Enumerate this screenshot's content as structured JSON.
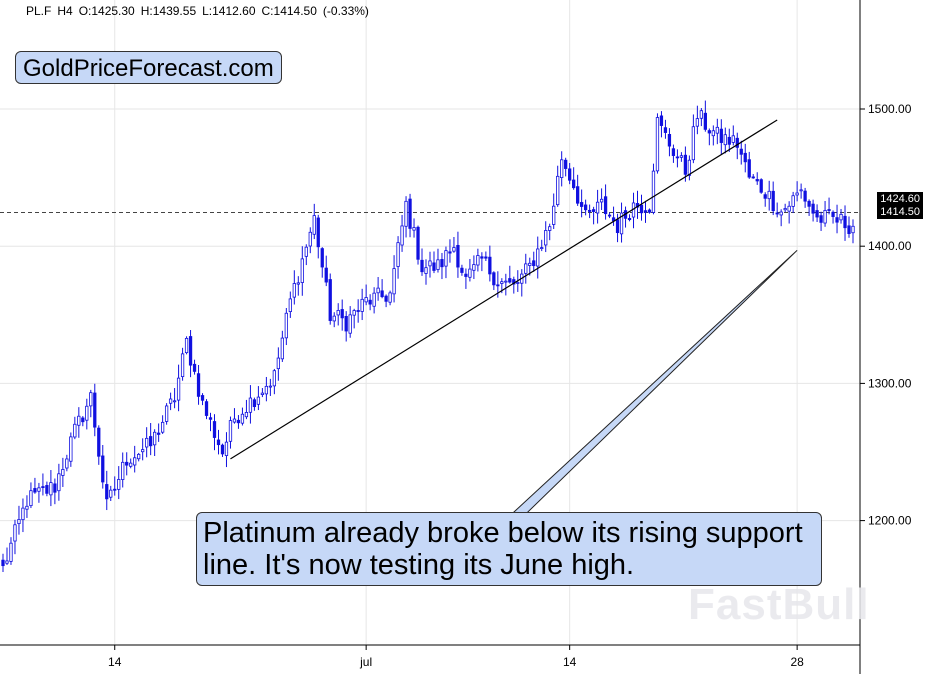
{
  "header": {
    "symbol": "PL.F",
    "timeframe": "H4",
    "open": "O:1425.30",
    "high": "H:1439.55",
    "low": "L:1412.60",
    "close": "C:1414.50",
    "change": "(-0.33%)"
  },
  "brand_label": "GoldPriceForecast.com",
  "annotation": "Platinum already broke below its rising support line. It's now testing its June high.",
  "watermark": "FastBull",
  "price_tags": {
    "reference": "1424.60",
    "last": "1414.50"
  },
  "colors": {
    "candle": "#1010e0",
    "annotation_fill": "#c6d8f7",
    "grid": "#e6e6e6"
  },
  "chart_data": {
    "type": "candlestick",
    "ylim": [
      1115,
      1575
    ],
    "y_ticks": [
      "1200.00",
      "1300.00",
      "1400.00",
      "1500.00"
    ],
    "y_tick_values": [
      1200,
      1300,
      1400,
      1500
    ],
    "x_ticks": [
      "14",
      "jul",
      "14",
      "28"
    ],
    "x_tick_bars": [
      28,
      91,
      142,
      199
    ],
    "bar_count": 214,
    "reference_level": 1424.6,
    "last_price": 1414.5,
    "anchors": [
      [
        0,
        1165
      ],
      [
        6,
        1215
      ],
      [
        13,
        1225
      ],
      [
        18,
        1265
      ],
      [
        22,
        1290
      ],
      [
        26,
        1210
      ],
      [
        31,
        1245
      ],
      [
        37,
        1255
      ],
      [
        43,
        1290
      ],
      [
        46,
        1330
      ],
      [
        50,
        1285
      ],
      [
        55,
        1250
      ],
      [
        58,
        1275
      ],
      [
        63,
        1290
      ],
      [
        68,
        1305
      ],
      [
        72,
        1360
      ],
      [
        78,
        1420
      ],
      [
        82,
        1350
      ],
      [
        86,
        1345
      ],
      [
        91,
        1360
      ],
      [
        97,
        1365
      ],
      [
        101,
        1430
      ],
      [
        105,
        1385
      ],
      [
        109,
        1385
      ],
      [
        113,
        1400
      ],
      [
        116,
        1375
      ],
      [
        120,
        1390
      ],
      [
        124,
        1375
      ],
      [
        128,
        1370
      ],
      [
        132,
        1385
      ],
      [
        137,
        1415
      ],
      [
        140,
        1465
      ],
      [
        143,
        1445
      ],
      [
        146,
        1420
      ],
      [
        150,
        1430
      ],
      [
        154,
        1415
      ],
      [
        158,
        1430
      ],
      [
        162,
        1430
      ],
      [
        164,
        1490
      ],
      [
        167,
        1475
      ],
      [
        171,
        1455
      ],
      [
        174,
        1495
      ],
      [
        179,
        1480
      ],
      [
        184,
        1475
      ],
      [
        187,
        1450
      ],
      [
        191,
        1440
      ],
      [
        195,
        1425
      ],
      [
        200,
        1440
      ],
      [
        204,
        1420
      ],
      [
        208,
        1420
      ],
      [
        213,
        1414.5
      ]
    ],
    "trendlines": [
      {
        "x1": 57,
        "y1": 1245,
        "x2": 194,
        "y2": 1492
      },
      {
        "x1": 129,
        "y1": 1190,
        "x2": 199,
        "y2": 1397
      }
    ]
  }
}
